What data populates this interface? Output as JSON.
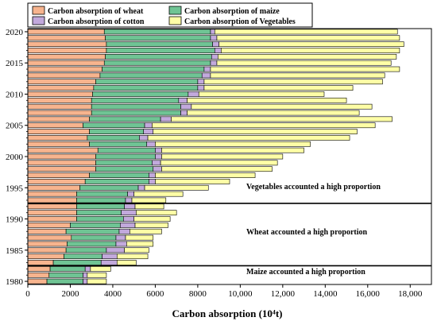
{
  "chart_data": {
    "type": "bar",
    "orientation": "horizontal",
    "stacked": true,
    "xlabel": "Carbon absorption (10⁴t)",
    "xlim": [
      0,
      19000
    ],
    "xticks": [
      0,
      2000,
      4000,
      6000,
      8000,
      10000,
      12000,
      14000,
      16000,
      18000
    ],
    "xtick_labels": [
      "0",
      "2000",
      "4000",
      "6000",
      "8000",
      "10,000",
      "12,000",
      "14,000",
      "16,000",
      "18,000"
    ],
    "ylim": [
      1979.5,
      2020.5
    ],
    "yticks": [
      1980,
      1985,
      1990,
      1995,
      2000,
      2005,
      2010,
      2015,
      2020
    ],
    "ytick_labels": [
      "1980",
      "1985",
      "1990",
      "1995",
      "2000",
      "2005",
      "2010",
      "2015",
      "2020"
    ],
    "legend_position": "top",
    "categories": [
      1980,
      1981,
      1982,
      1983,
      1984,
      1985,
      1986,
      1987,
      1988,
      1989,
      1990,
      1991,
      1992,
      1993,
      1994,
      1995,
      1996,
      1997,
      1998,
      1999,
      2000,
      2001,
      2002,
      2003,
      2004,
      2005,
      2006,
      2007,
      2008,
      2009,
      2010,
      2011,
      2012,
      2013,
      2014,
      2015,
      2016,
      2017,
      2018,
      2019,
      2020
    ],
    "series": [
      {
        "name": "Carbon absorption of wheat",
        "color": "#f7b48e",
        "values": [
          900,
          1000,
          1050,
          1200,
          1700,
          1800,
          1850,
          2050,
          1800,
          2000,
          2300,
          2300,
          2300,
          2300,
          2300,
          2450,
          2700,
          2900,
          3200,
          3200,
          3200,
          3300,
          2900,
          2800,
          2900,
          2600,
          2900,
          3000,
          3000,
          3000,
          3050,
          3100,
          3200,
          3400,
          3500,
          3600,
          3650,
          3700,
          3700,
          3650,
          3600
        ]
      },
      {
        "name": "Carbon absorption of maize",
        "color": "#6fc494",
        "values": [
          1700,
          1600,
          1650,
          2250,
          1800,
          1900,
          2300,
          2100,
          2500,
          2350,
          2200,
          2100,
          2250,
          2300,
          2400,
          2750,
          3000,
          2800,
          2700,
          2650,
          2800,
          2700,
          2700,
          2450,
          2550,
          2900,
          3350,
          4200,
          4200,
          4100,
          4500,
          4900,
          4800,
          4800,
          4800,
          5000,
          5000,
          5100,
          5000,
          4950,
          5000
        ]
      },
      {
        "name": "Carbon absorption of cotton",
        "color": "#c2a9dc",
        "values": [
          200,
          200,
          250,
          750,
          700,
          850,
          500,
          450,
          500,
          700,
          500,
          700,
          500,
          300,
          300,
          300,
          300,
          300,
          400,
          400,
          300,
          300,
          400,
          400,
          450,
          350,
          500,
          300,
          500,
          400,
          500,
          300,
          300,
          400,
          300,
          300,
          300,
          300,
          300,
          300,
          200
        ]
      },
      {
        "name": "Carbon absorption of Vegetables",
        "color": "#fefea6",
        "values": [
          900,
          900,
          950,
          900,
          1450,
          1150,
          1250,
          1300,
          1500,
          1550,
          1700,
          1900,
          1350,
          1600,
          2300,
          3000,
          3500,
          4700,
          5200,
          5500,
          5700,
          6700,
          7300,
          9500,
          9600,
          10500,
          10400,
          8100,
          8500,
          7500,
          5900,
          7000,
          8400,
          8200,
          8900,
          8200,
          8400,
          8400,
          8700,
          8600,
          8600
        ]
      }
    ],
    "separators": [
      {
        "position_year": 1982.5
      },
      {
        "position_year": 1992.5
      }
    ],
    "annotations": [
      {
        "text": "Vegetables accounted a high proportion"
      },
      {
        "text": "Wheat accounted a high proportion"
      },
      {
        "text": "Maize accounted a high proportion"
      }
    ]
  }
}
